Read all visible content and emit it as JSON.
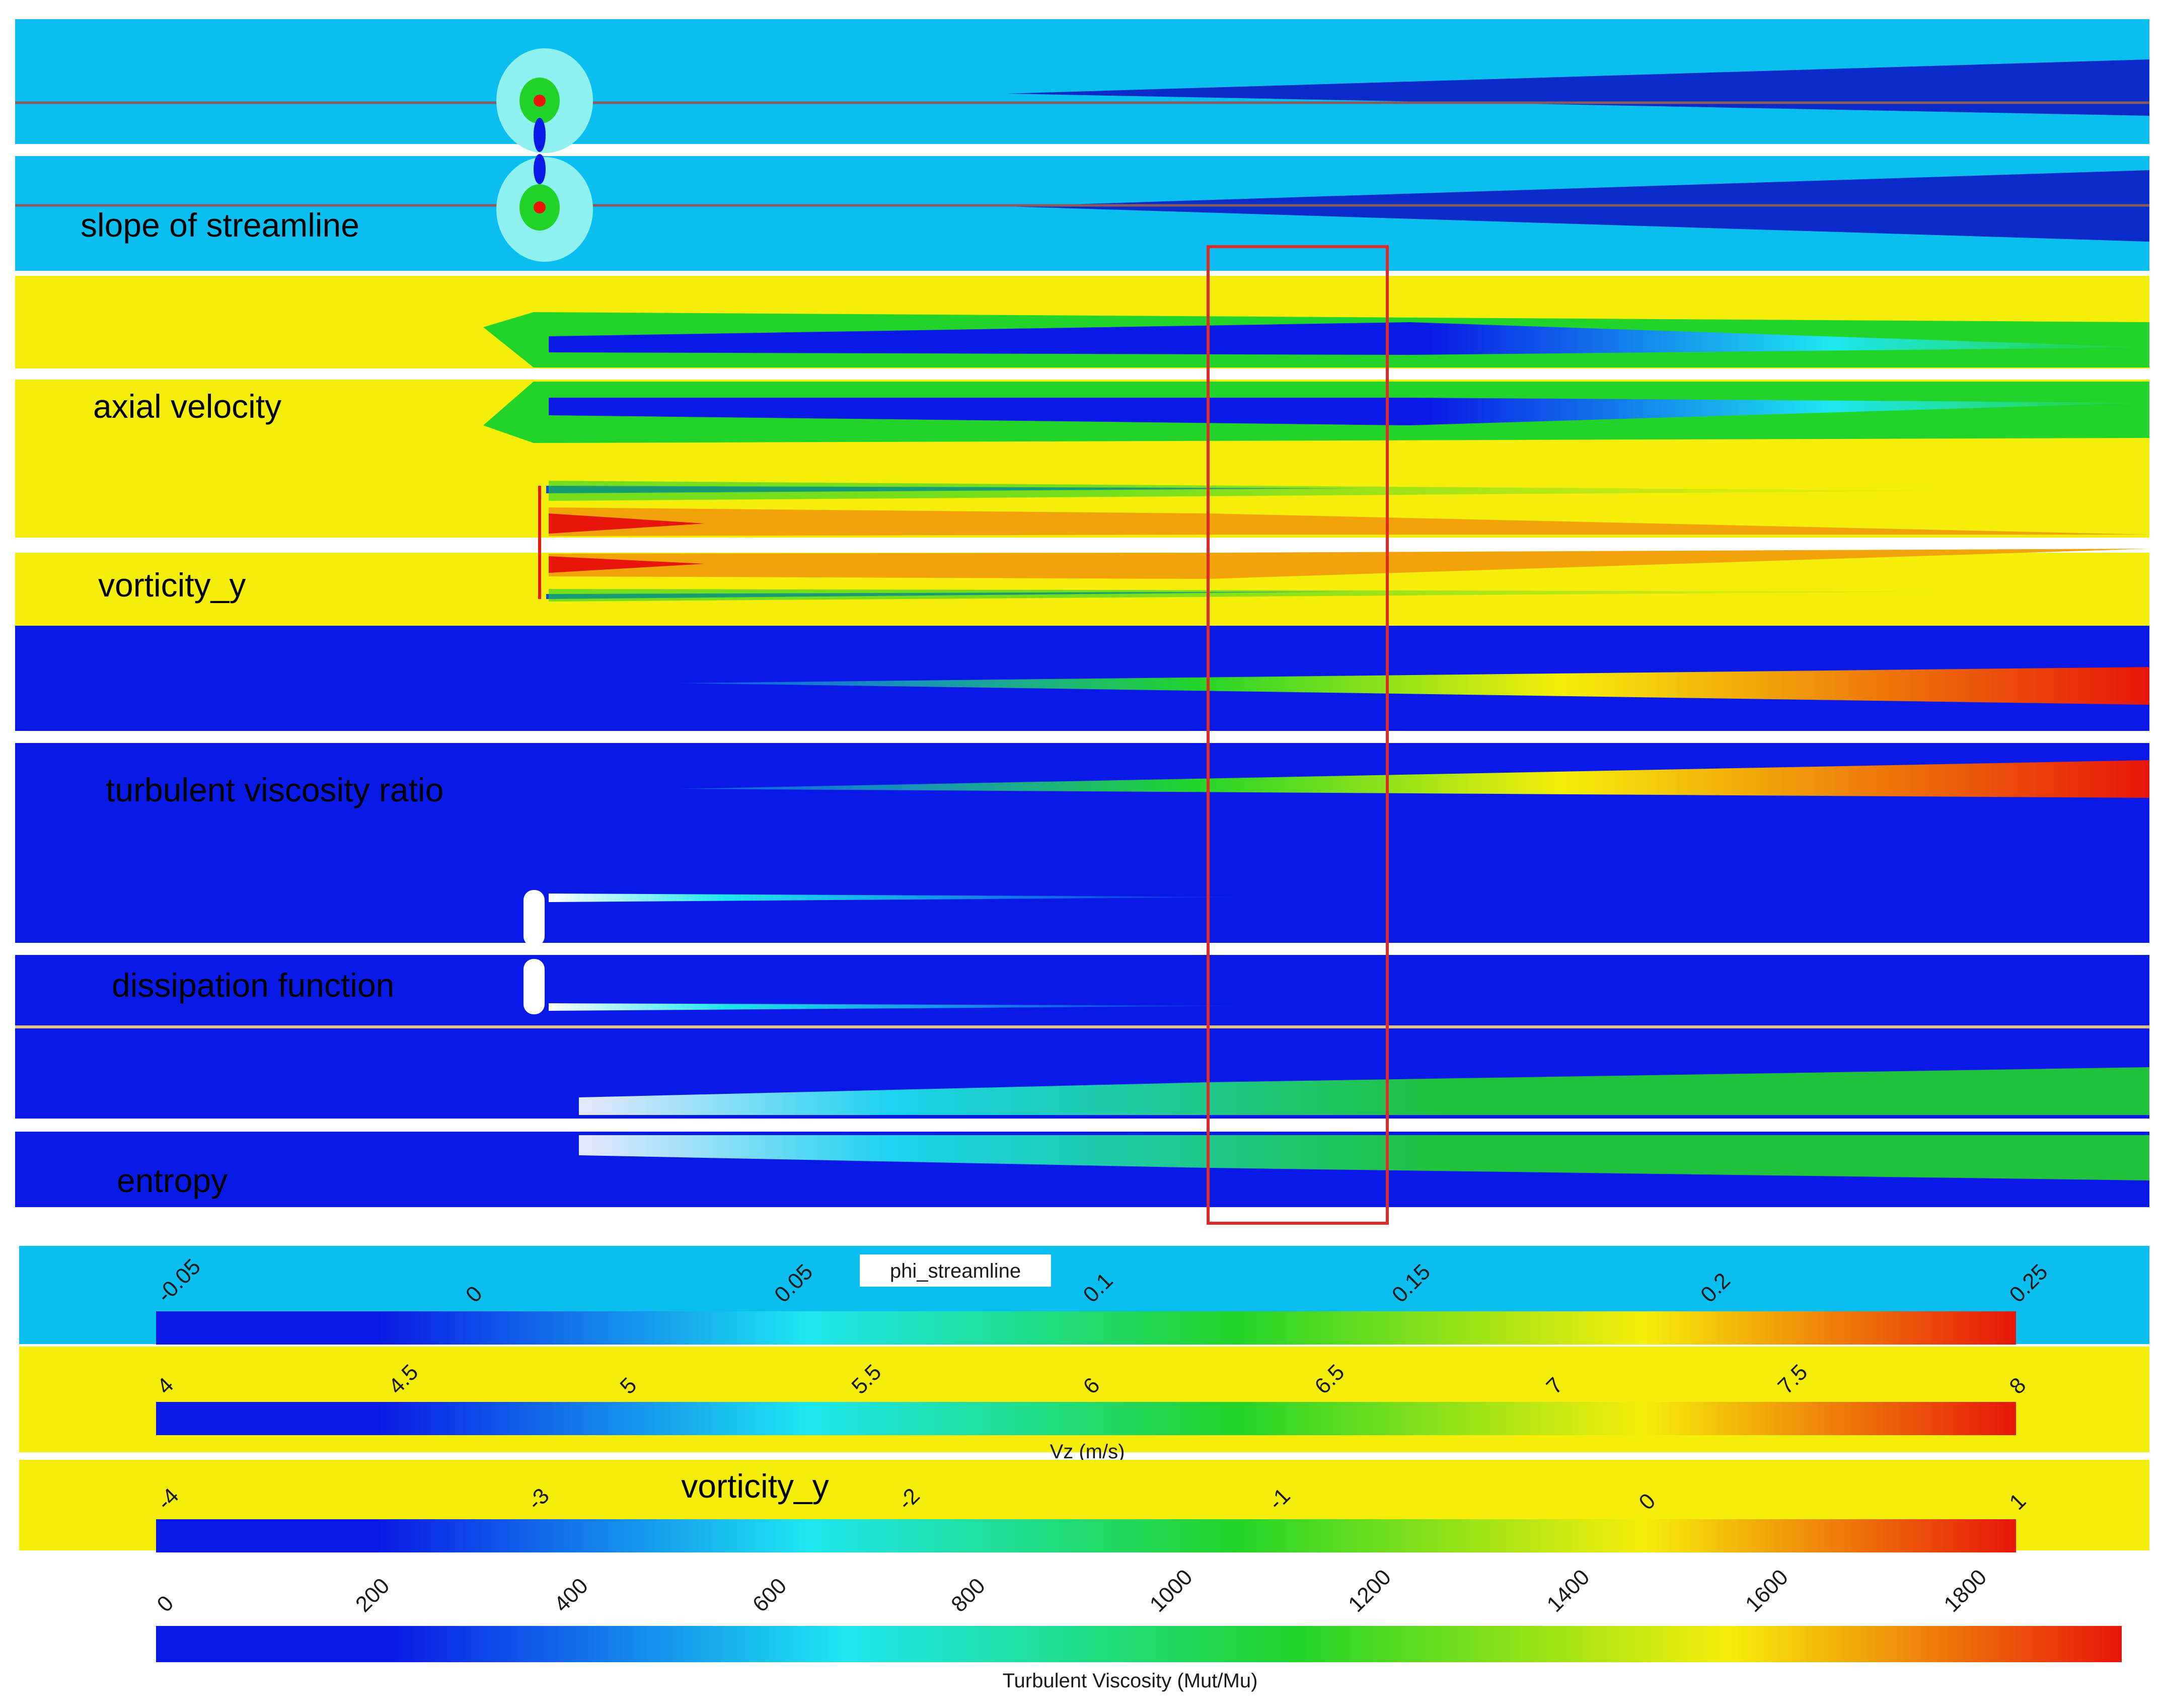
{
  "panels": [
    {
      "label": "slope of streamline"
    },
    {
      "label": "axial velocity"
    },
    {
      "label": "vorticity_y"
    },
    {
      "label": "turbulent viscosity ratio"
    },
    {
      "label": "dissipation function"
    },
    {
      "label": "entropy"
    }
  ],
  "colorbars": [
    {
      "title": "phi_streamline",
      "ticks": [
        "-0.05",
        "0",
        "0.05",
        "0.1",
        "0.15",
        "0.2",
        "0.25"
      ]
    },
    {
      "title": "Vz (m/s)",
      "ticks": [
        "4",
        "4.5",
        "5",
        "5.5",
        "6",
        "6.5",
        "7",
        "7.5",
        "8"
      ]
    },
    {
      "title": "vorticity_y",
      "ticks": [
        "-4",
        "-3",
        "-2",
        "-1",
        "0",
        "1"
      ]
    },
    {
      "title": "Turbulent Viscosity (Mut/Mu)",
      "ticks": [
        "0",
        "200",
        "400",
        "600",
        "800",
        "1000",
        "1200",
        "1400",
        "1600",
        "1800"
      ]
    }
  ],
  "colors": {
    "jet_blue": "#0a1ae6",
    "jet_cyan": "#1ee6f0",
    "jet_green": "#22d42a",
    "jet_yellow": "#f5ee0a",
    "jet_red": "#e8150a",
    "sky_background": "#0bbef0",
    "highlight_box": "#e02a2a"
  }
}
